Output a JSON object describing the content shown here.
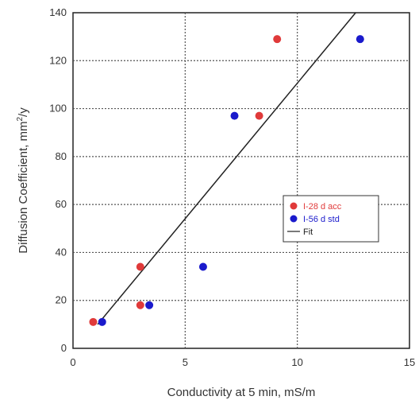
{
  "chart_data": {
    "type": "scatter",
    "title": "",
    "xlabel": "Conductivity at 5 min, mS/m",
    "ylabel": "Diffusion Coefficient, mm²/y",
    "ylabel_base": "Diffusion Coefficient, mm",
    "ylabel_sup": "2",
    "ylabel_tail": "/y",
    "xlim": [
      0,
      15
    ],
    "ylim": [
      0,
      140
    ],
    "xticks": [
      0,
      5,
      10,
      15
    ],
    "yticks": [
      0,
      20,
      40,
      60,
      80,
      100,
      120,
      140
    ],
    "grid": true,
    "legend_position": "right-middle",
    "series": [
      {
        "name": "I-28 d acc",
        "color": "#e03a3a",
        "points": [
          {
            "x": 0.9,
            "y": 11
          },
          {
            "x": 3.0,
            "y": 18
          },
          {
            "x": 3.0,
            "y": 34
          },
          {
            "x": 8.3,
            "y": 97
          },
          {
            "x": 9.1,
            "y": 129
          }
        ]
      },
      {
        "name": "I-56 d std",
        "color": "#1a1acc",
        "points": [
          {
            "x": 1.3,
            "y": 11
          },
          {
            "x": 3.4,
            "y": 18
          },
          {
            "x": 5.8,
            "y": 34
          },
          {
            "x": 7.2,
            "y": 97
          },
          {
            "x": 12.8,
            "y": 129
          }
        ]
      }
    ],
    "fit": {
      "name": "Fit",
      "color": "#222222",
      "x": [
        1.1,
        12.6
      ],
      "y": [
        10,
        140
      ]
    }
  }
}
